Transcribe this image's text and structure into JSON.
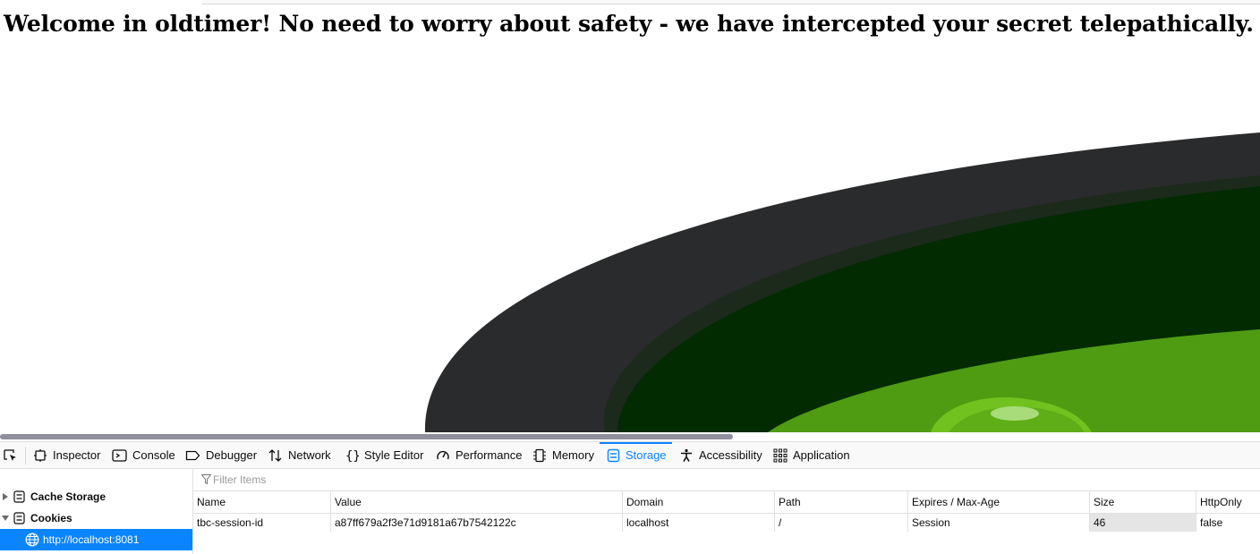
{
  "page": {
    "headline": "Welcome in oldtimer! No need to worry about safety - we have intercepted your secret telepathically."
  },
  "colors": {
    "accent": "#0a84ff",
    "outer_rim": "#2a2b2c",
    "dark_green": "#022b02",
    "bright_green": "#4f9c12",
    "gem_green": "#72c21f"
  },
  "devtools": {
    "tabs": [
      {
        "label": "Inspector",
        "icon": "inspector-icon"
      },
      {
        "label": "Console",
        "icon": "console-icon"
      },
      {
        "label": "Debugger",
        "icon": "debugger-icon"
      },
      {
        "label": "Network",
        "icon": "network-icon"
      },
      {
        "label": "Style Editor",
        "icon": "style-editor-icon"
      },
      {
        "label": "Performance",
        "icon": "performance-icon"
      },
      {
        "label": "Memory",
        "icon": "memory-icon"
      },
      {
        "label": "Storage",
        "icon": "storage-icon",
        "active": true
      },
      {
        "label": "Accessibility",
        "icon": "accessibility-icon"
      },
      {
        "label": "Application",
        "icon": "application-icon"
      }
    ],
    "sidebar": {
      "items": [
        {
          "label": "Cache Storage",
          "expanded": false
        },
        {
          "label": "Cookies",
          "expanded": true
        },
        {
          "label": "http://localhost:8081",
          "selected": true
        }
      ]
    },
    "filter": {
      "placeholder": "Filter Items"
    },
    "table": {
      "columns": [
        "Name",
        "Value",
        "Domain",
        "Path",
        "Expires / Max-Age",
        "Size",
        "HttpOnly"
      ],
      "rows": [
        [
          "tbc-session-id",
          "a87ff679a2f3e71d9181a67b7542122c",
          "localhost",
          "/",
          "Session",
          "46",
          "false"
        ]
      ]
    }
  }
}
